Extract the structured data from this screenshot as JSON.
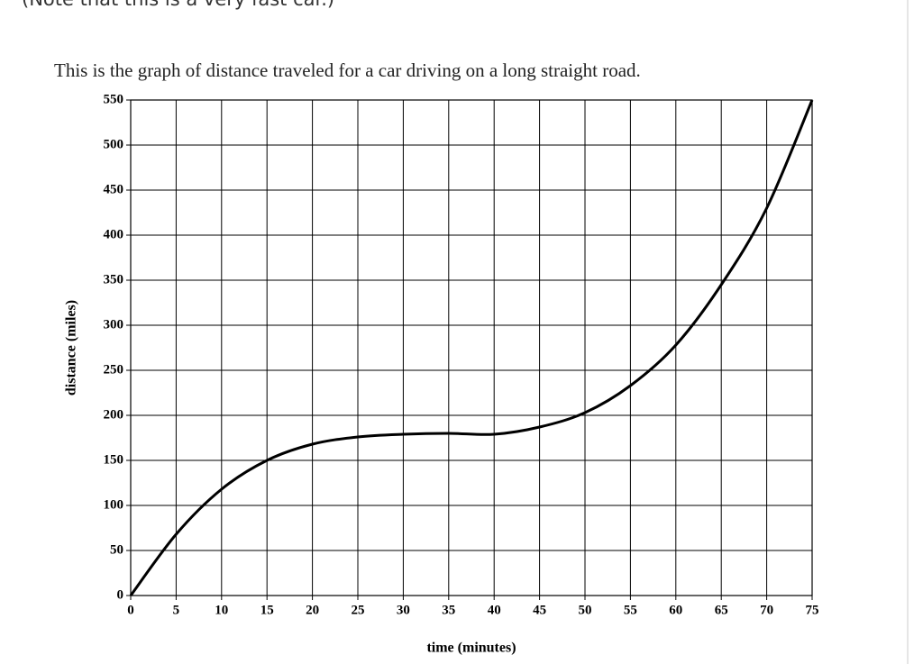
{
  "chart_data": {
    "type": "line",
    "note": "(Note that this is a very fast car.)",
    "title": "This is the graph of distance traveled for a car driving on a long straight road.",
    "x_label": "time (minutes)",
    "y_label": "distance (miles)",
    "x": [
      0,
      5,
      10,
      15,
      20,
      25,
      30,
      35,
      40,
      45,
      50,
      55,
      60,
      65,
      70,
      75
    ],
    "values": [
      0,
      68,
      118,
      150,
      168,
      176,
      179,
      180,
      179,
      187,
      203,
      233,
      278,
      345,
      430,
      550
    ],
    "color": "#000000",
    "xlim": [
      0,
      75
    ],
    "xticks": [
      0,
      5,
      10,
      15,
      20,
      25,
      30,
      35,
      40,
      45,
      50,
      55,
      60,
      65,
      70,
      75
    ],
    "ylim": [
      0,
      550
    ],
    "yticks": [
      0,
      50,
      100,
      150,
      200,
      250,
      300,
      350,
      400,
      450,
      500,
      550
    ],
    "grid": true
  }
}
